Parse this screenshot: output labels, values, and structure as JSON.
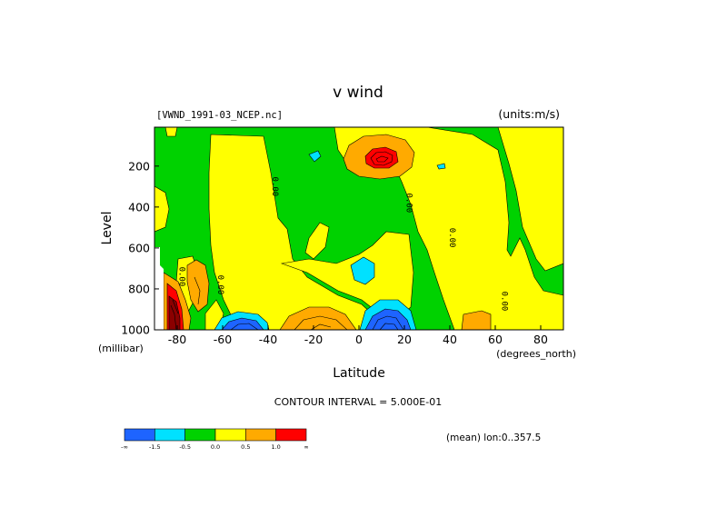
{
  "chart_data": {
    "type": "heatmap",
    "title": "v wind",
    "dataset": "[VWND_1991-03_NCEP.nc]",
    "units": "(units:m/s)",
    "xlabel": "Latitude",
    "ylabel": "Level",
    "x_units": "(degrees_north)",
    "y_units": "(millibar)",
    "xlim": [
      -90,
      90
    ],
    "ylim": [
      1000,
      10
    ],
    "y_inverted": true,
    "x_ticks": [
      -80,
      -60,
      -40,
      -20,
      0,
      20,
      40,
      60,
      80
    ],
    "y_ticks": [
      200,
      400,
      600,
      800,
      1000
    ],
    "contour_interval_text": "CONTOUR INTERVAL = 5.000E-01",
    "mean_text": "(mean) lon:0..357.5",
    "contour_labels": [
      {
        "text": "0.00",
        "lat": -38,
        "lev": 300
      },
      {
        "text": "0.00",
        "lat": 21,
        "lev": 380
      },
      {
        "text": "0.00",
        "lat": 40,
        "lev": 550
      },
      {
        "text": "0.00",
        "lat": 63,
        "lev": 860
      },
      {
        "text": "0.00",
        "lat": -79,
        "lev": 740
      },
      {
        "text": "0.00",
        "lat": -62,
        "lev": 780
      }
    ],
    "colorbar": {
      "colors": [
        "#1e64ff",
        "#00e1ff",
        "#00d200",
        "#ffff00",
        "#ffaa00",
        "#ff0000"
      ],
      "labels": [
        "-∞",
        "-1.5",
        "-0.5",
        "0.0",
        "0.5",
        "1.0",
        "∞"
      ]
    },
    "regions": [
      {
        "level": "neg1",
        "lat_range": [
          -10,
          40
        ],
        "lev_range": [
          980,
          810
        ],
        "note": "core near 10N,950mb"
      },
      {
        "level": "neg1",
        "lat_range": [
          -63,
          -50
        ],
        "lev_range": [
          1000,
          960
        ]
      },
      {
        "level": "pos2",
        "lat_range": [
          -5,
          25
        ],
        "lev_range": [
          230,
          90
        ],
        "note": "max near 10N,170mb"
      },
      {
        "level": "pos2",
        "lat_range": [
          -90,
          -75
        ],
        "lev_range": [
          1000,
          800
        ]
      },
      {
        "level": "pos1",
        "lat_range": [
          -35,
          -5
        ],
        "lev_range": [
          1000,
          920
        ]
      },
      {
        "level": "pos1",
        "lat_range": [
          53,
          62
        ],
        "lev_range": [
          1000,
          930
        ]
      }
    ]
  }
}
